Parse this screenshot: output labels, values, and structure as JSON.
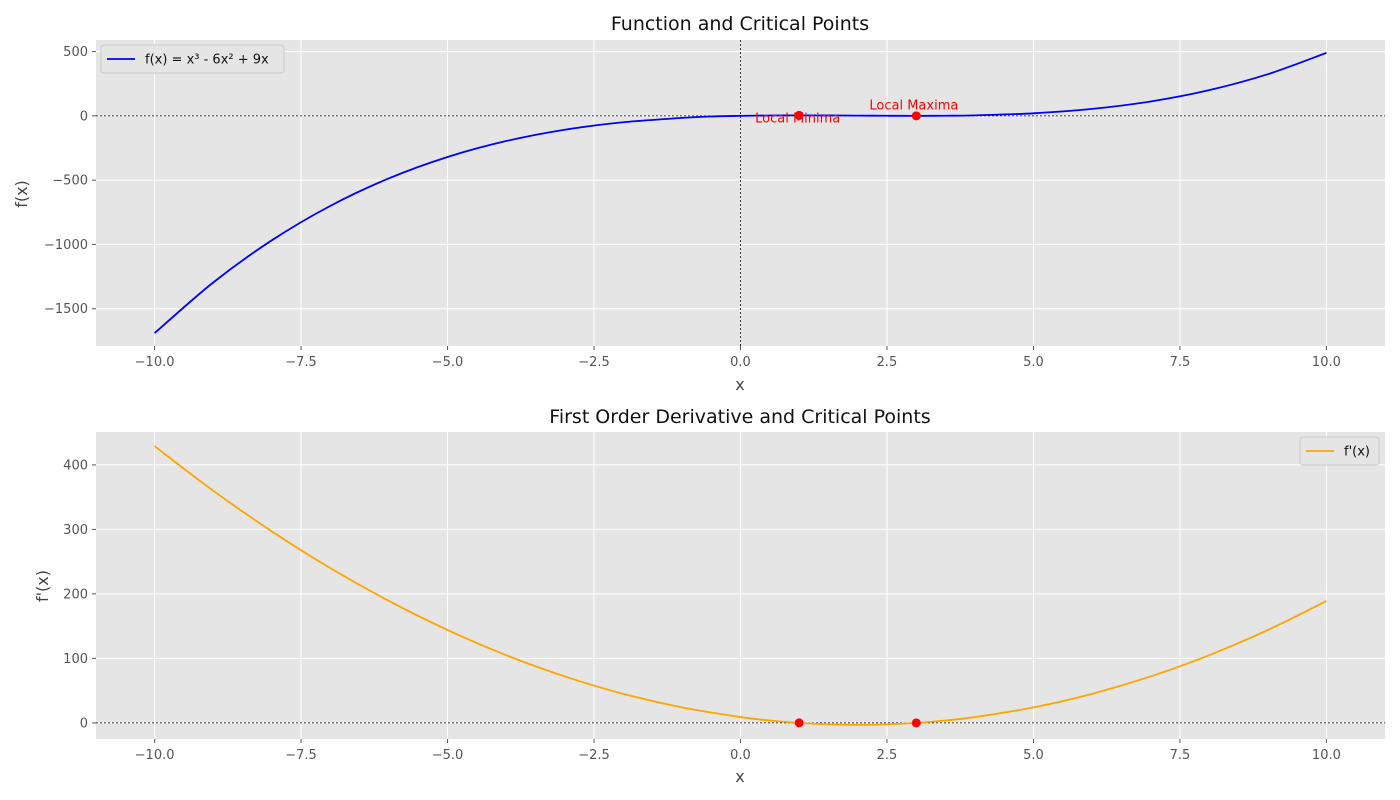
{
  "chart_data": [
    {
      "type": "line",
      "title": "Function and Critical Points",
      "xlabel": "x",
      "ylabel": "f(x)",
      "xlim": [
        -11,
        11
      ],
      "ylim": [
        -1790,
        590
      ],
      "xticks": [
        -10,
        -7.5,
        -5,
        -2.5,
        0,
        2.5,
        5,
        7.5,
        10
      ],
      "xtick_labels": [
        "−10.0",
        "−7.5",
        "−5.0",
        "−2.5",
        "0.0",
        "2.5",
        "5.0",
        "7.5",
        "10.0"
      ],
      "yticks": [
        -1500,
        -1000,
        -500,
        0,
        500
      ],
      "ytick_labels": [
        "−1500",
        "−1000",
        "−500",
        "0",
        "500"
      ],
      "grid": true,
      "legend_position": "upper-left",
      "series": [
        {
          "name": "f(x) = x³ - 6x² + 9x",
          "color": "#0000ff",
          "x": [
            -10,
            -9,
            -8,
            -7,
            -6,
            -5,
            -4,
            -3,
            -2,
            -1,
            -0.5,
            0,
            0.5,
            1,
            1.5,
            2,
            2.5,
            3,
            3.5,
            4,
            5,
            6,
            7,
            8,
            9,
            10
          ],
          "y": [
            -1690,
            -1296,
            -968,
            -700,
            -486,
            -320,
            -196,
            -108,
            -50,
            -16,
            -4.63,
            0,
            2.63,
            4,
            3.38,
            2,
            0.63,
            0,
            0.88,
            4,
            20,
            54,
            112,
            200,
            324,
            490
          ]
        }
      ],
      "points": [
        {
          "x": 1,
          "y": 4,
          "color": "#ff0000"
        },
        {
          "x": 3,
          "y": 0,
          "color": "#ff0000"
        }
      ],
      "annotations": [
        {
          "text": "Local Minima",
          "x": 0.25,
          "y": -50,
          "color": "#ff0000"
        },
        {
          "text": "Local Maxima",
          "x": 2.2,
          "y": 50,
          "color": "#ff0000"
        }
      ],
      "reference_lines": {
        "hline_y": 0,
        "vline_x": 0
      }
    },
    {
      "type": "line",
      "title": "First Order Derivative and Critical Points",
      "xlabel": "x",
      "ylabel": "f'(x)",
      "xlim": [
        -11,
        11
      ],
      "ylim": [
        -25,
        451
      ],
      "xticks": [
        -10,
        -7.5,
        -5,
        -2.5,
        0,
        2.5,
        5,
        7.5,
        10
      ],
      "xtick_labels": [
        "−10.0",
        "−7.5",
        "−5.0",
        "−2.5",
        "0.0",
        "2.5",
        "5.0",
        "7.5",
        "10.0"
      ],
      "yticks": [
        0,
        100,
        200,
        300,
        400
      ],
      "ytick_labels": [
        "0",
        "100",
        "200",
        "300",
        "400"
      ],
      "grid": true,
      "legend_position": "upper-right",
      "series": [
        {
          "name": "f'(x)",
          "color": "#ffa500",
          "x": [
            -10,
            -9,
            -8,
            -7,
            -6,
            -5,
            -4,
            -3,
            -2,
            -1,
            0,
            0.5,
            1,
            1.5,
            2,
            2.5,
            3,
            3.5,
            4,
            5,
            6,
            7,
            8,
            9,
            10
          ],
          "y": [
            429,
            360,
            297,
            240,
            189,
            144,
            105,
            72,
            45,
            24,
            9,
            3.75,
            0,
            -2.25,
            -3,
            -2.25,
            0,
            3.75,
            9,
            24,
            45,
            72,
            105,
            144,
            189
          ]
        }
      ],
      "points": [
        {
          "x": 1,
          "y": 0,
          "color": "#ff0000"
        },
        {
          "x": 3,
          "y": 0,
          "color": "#ff0000"
        }
      ],
      "annotations": [],
      "reference_lines": {
        "hline_y": 0
      }
    }
  ]
}
